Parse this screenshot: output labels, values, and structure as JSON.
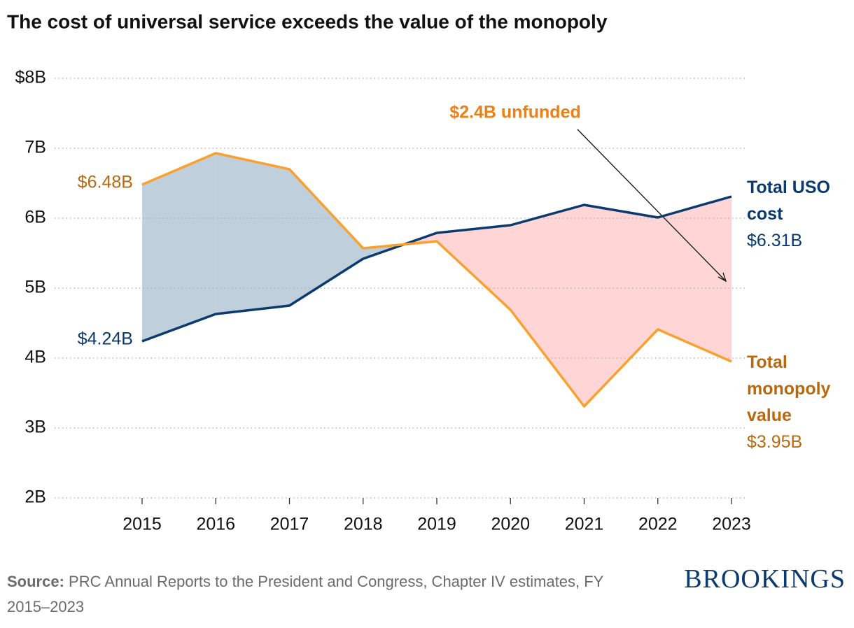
{
  "chart_data": {
    "type": "line",
    "title": "The cost of universal service exceeds the value of the monopoly",
    "categories": [
      "2015",
      "2016",
      "2017",
      "2018",
      "2019",
      "2020",
      "2021",
      "2022",
      "2023"
    ],
    "series": [
      {
        "name": "Total USO cost",
        "color": "#0b3a6e",
        "label_color": "#0b3a6e",
        "values": [
          4.24,
          4.63,
          4.75,
          5.42,
          5.79,
          5.9,
          6.19,
          6.01,
          6.31
        ],
        "value_labels": [
          "$4.24B",
          null,
          null,
          null,
          null,
          null,
          null,
          null,
          "$6.31B"
        ]
      },
      {
        "name": "Total monopoly value",
        "color": "#f9a12e",
        "label_color": "#b8690f",
        "values": [
          6.48,
          6.93,
          6.7,
          5.57,
          5.67,
          4.69,
          3.31,
          4.41,
          3.95
        ],
        "value_labels": [
          "$6.48B",
          null,
          null,
          null,
          null,
          null,
          null,
          null,
          "$3.95B"
        ]
      }
    ],
    "area_colors": [
      "#bfcfdc",
      "#ffd6d5"
    ],
    "annotation": "$2.4B unfunded",
    "annotation_color": "#ee7f12",
    "ylim": [
      2,
      8
    ],
    "yticks": [
      {
        "value": 2,
        "label": "2B"
      },
      {
        "value": 3,
        "label": "3B"
      },
      {
        "value": 4,
        "label": "4B"
      },
      {
        "value": 5,
        "label": "5B"
      },
      {
        "value": 6,
        "label": "6B"
      },
      {
        "value": 7,
        "label": "7B"
      },
      {
        "value": 8,
        "label": "$8B"
      }
    ],
    "grid": true,
    "source_label": "Source:",
    "source_text": "PRC Annual Reports to the President and Congress, Chapter IV estimates, FY 2015–2023",
    "brand": "BROOKINGS"
  }
}
